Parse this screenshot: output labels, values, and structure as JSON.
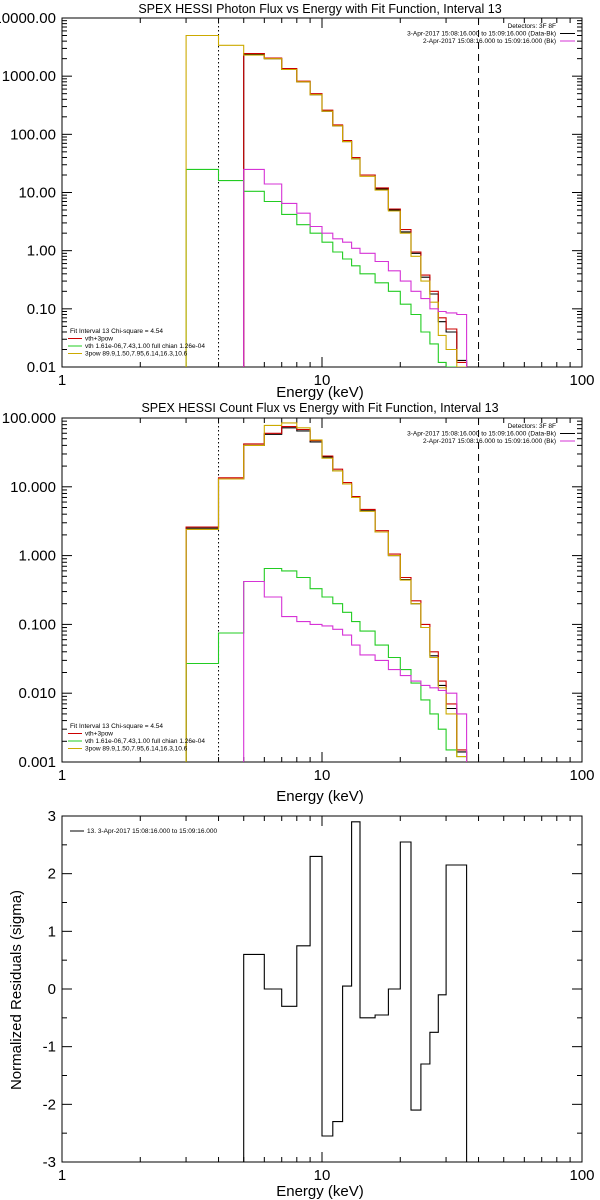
{
  "chart_data": [
    {
      "type": "line",
      "title": "SPEX HESSI Photon Flux vs Energy with Fit Function, Interval 13",
      "xlabel": "Energy (keV)",
      "ylabel": "",
      "xscale": "log",
      "yscale": "log",
      "xlim": [
        1,
        100
      ],
      "ylim": [
        0.01,
        10000
      ],
      "x_ticks": [
        "1",
        "10",
        "100"
      ],
      "y_ticks": [
        "0.01",
        "0.10",
        "1.00",
        "10.00",
        "100.00",
        "1000.00",
        "10000.00"
      ],
      "vlines": [
        {
          "x": 4,
          "style": "dotted"
        },
        {
          "x": 40,
          "style": "dashed"
        }
      ],
      "legend_top_right": [
        {
          "text": "Detectors: 3F 8F",
          "color": "#000000"
        },
        {
          "text": "3-Apr-2017 15:08:16.000 to 15:09:16.000 (Data-Bk)",
          "color": "#000000"
        },
        {
          "text": "2-Apr-2017 15:08:16.000 to 15:09:16.000 (Bk)",
          "color": "#d633d6"
        }
      ],
      "legend_bottom_left": [
        {
          "text": "Fit Interval 13   Chi-square = 4.54",
          "color": "#000000"
        },
        {
          "text": "vth+3pow",
          "color": "#cc0000"
        },
        {
          "text": "vth 1.61e-06,7.43,1.00   full chian 1.26e-04",
          "color": "#22cc22"
        },
        {
          "text": "3pow 89.9,1.50,7.95,6.14,16.3,10.6",
          "color": "#ccaa00"
        }
      ],
      "bin_edges": [
        3,
        4,
        5,
        6,
        7,
        8,
        9,
        10,
        11,
        12,
        13,
        14,
        16,
        18,
        20,
        22,
        24,
        26,
        28,
        30,
        33,
        36
      ],
      "series": [
        {
          "name": "Data-Bk",
          "color": "#000000",
          "start_bin": 2,
          "values": [
            2400,
            2000,
            1300,
            800,
            480,
            250,
            140,
            75,
            38,
            20,
            11.5,
            5,
            2.1,
            0.9,
            0.35,
            0.18,
            0.06,
            0.04,
            0.013
          ]
        },
        {
          "name": "vth+3pow",
          "color": "#cc0000",
          "start_bin": 2,
          "values": [
            2450,
            2050,
            1350,
            820,
            500,
            260,
            145,
            78,
            40,
            20,
            12,
            5.2,
            2.3,
            0.95,
            0.38,
            0.2,
            0.07,
            0.045,
            0.012
          ]
        },
        {
          "name": "vth",
          "color": "#22cc22",
          "start_bin": 0,
          "values": [
            25,
            16,
            10.5,
            7,
            4.2,
            2.8,
            2.0,
            1.4,
            0.95,
            0.72,
            0.55,
            0.4,
            0.28,
            0.2,
            0.12,
            0.08,
            0.04,
            0.025,
            0.012,
            0.01
          ]
        },
        {
          "name": "3pow",
          "color": "#ccaa00",
          "start_bin": 0,
          "values": [
            5000,
            3400,
            2300,
            2000,
            1300,
            800,
            480,
            250,
            140,
            75,
            38,
            19,
            11,
            4.8,
            2.0,
            0.8,
            0.3,
            0.13,
            0.035,
            0.02,
            0.008
          ]
        },
        {
          "name": "Bk",
          "color": "#d633d6",
          "start_bin": 2,
          "values": [
            25,
            14,
            6.5,
            4.4,
            2.6,
            2.0,
            1.6,
            1.4,
            1.1,
            0.9,
            0.65,
            0.45,
            0.3,
            0.2,
            0.15,
            0.1,
            0.09,
            0.085,
            0.08
          ]
        }
      ]
    },
    {
      "type": "line",
      "title": "SPEX HESSI Count Flux vs Energy with Fit Function, Interval 13",
      "xlabel": "Energy (keV)",
      "ylabel": "",
      "xscale": "log",
      "yscale": "log",
      "xlim": [
        1,
        100
      ],
      "ylim": [
        0.001,
        100
      ],
      "x_ticks": [
        "1",
        "10",
        "100"
      ],
      "y_ticks": [
        "0.001",
        "0.010",
        "0.100",
        "1.000",
        "10.000",
        "100.000"
      ],
      "vlines": [
        {
          "x": 4,
          "style": "dotted"
        },
        {
          "x": 40,
          "style": "dashed"
        }
      ],
      "legend_top_right": [
        {
          "text": "Detectors: 3F 8F",
          "color": "#000000"
        },
        {
          "text": "3-Apr-2017 15:08:16.000 to 15:09:16.000 (Data-Bk)",
          "color": "#000000"
        },
        {
          "text": "2-Apr-2017 15:08:16.000 to 15:09:16.000 (Bk)",
          "color": "#d633d6"
        }
      ],
      "legend_bottom_left": [
        {
          "text": "Fit Interval 13   Chi-square = 4.54",
          "color": "#000000"
        },
        {
          "text": "vth+3pow",
          "color": "#cc0000"
        },
        {
          "text": "vth 1.61e-06,7.43,1.00   full chian 1.26e-04",
          "color": "#22cc22"
        },
        {
          "text": "3pow 89.9,1.50,7.95,6.14,16.3,10.6",
          "color": "#ccaa00"
        }
      ],
      "bin_edges": [
        3,
        4,
        5,
        6,
        7,
        8,
        9,
        10,
        11,
        12,
        13,
        14,
        16,
        18,
        20,
        22,
        24,
        26,
        28,
        30,
        33,
        36
      ],
      "series": [
        {
          "name": "Data-Bk",
          "color": "#000000",
          "start_bin": 0,
          "values": [
            2.5,
            13,
            40,
            58,
            72,
            65,
            45,
            27,
            17,
            11,
            7,
            4.5,
            2.2,
            1.0,
            0.45,
            0.2,
            0.09,
            0.035,
            0.013,
            0.006,
            0.0014
          ]
        },
        {
          "name": "vth+3pow",
          "color": "#cc0000",
          "start_bin": 0,
          "values": [
            2.6,
            13.5,
            42,
            60,
            75,
            68,
            47,
            28,
            18,
            11.5,
            7.2,
            4.7,
            2.3,
            1.05,
            0.48,
            0.22,
            0.1,
            0.04,
            0.015,
            0.007,
            0.0015
          ]
        },
        {
          "name": "vth",
          "color": "#22cc22",
          "start_bin": 0,
          "values": [
            0.027,
            0.075,
            0.42,
            0.65,
            0.6,
            0.48,
            0.33,
            0.25,
            0.2,
            0.15,
            0.11,
            0.08,
            0.05,
            0.033,
            0.022,
            0.014,
            0.008,
            0.005,
            0.003,
            0.0015,
            0.0012
          ]
        },
        {
          "name": "3pow",
          "color": "#ccaa00",
          "start_bin": 0,
          "values": [
            2.4,
            13,
            40,
            78,
            85,
            72,
            48,
            26,
            17,
            11,
            7,
            4.4,
            2.2,
            1.0,
            0.44,
            0.2,
            0.09,
            0.033,
            0.012,
            0.005,
            0.0012
          ]
        },
        {
          "name": "Bk",
          "color": "#d633d6",
          "start_bin": 2,
          "values": [
            0.42,
            0.25,
            0.13,
            0.11,
            0.1,
            0.095,
            0.085,
            0.07,
            0.05,
            0.036,
            0.03,
            0.022,
            0.018,
            0.015,
            0.013,
            0.012,
            0.011,
            0.01,
            0.005
          ]
        }
      ]
    },
    {
      "type": "line",
      "title": "",
      "xlabel": "Energy (keV)",
      "ylabel": "Normalized Residuals (sigma)",
      "xscale": "log",
      "yscale": "linear",
      "xlim": [
        1,
        100
      ],
      "ylim": [
        -3,
        3
      ],
      "x_ticks": [
        "1",
        "10",
        "100"
      ],
      "y_ticks": [
        "-3",
        "-2",
        "-1",
        "0",
        "1",
        "2",
        "3"
      ],
      "legend_top_left": [
        {
          "text": "13.  3-Apr-2017 15:08:16.000 to 15:09:16.000",
          "color": "#000000"
        }
      ],
      "bin_edges": [
        5,
        6,
        7,
        8,
        9,
        10,
        11,
        12,
        13,
        14,
        16,
        18,
        20,
        22,
        24,
        26,
        28,
        30,
        33,
        36
      ],
      "series": [
        {
          "name": "residuals",
          "color": "#000000",
          "start_bin": 0,
          "values": [
            0.6,
            0.0,
            -0.3,
            0.75,
            2.3,
            -2.55,
            -2.3,
            0.05,
            2.9,
            -0.5,
            -0.45,
            0.0,
            2.55,
            -2.1,
            -1.3,
            -0.75,
            -0.1,
            2.15,
            2.15
          ]
        }
      ]
    }
  ]
}
